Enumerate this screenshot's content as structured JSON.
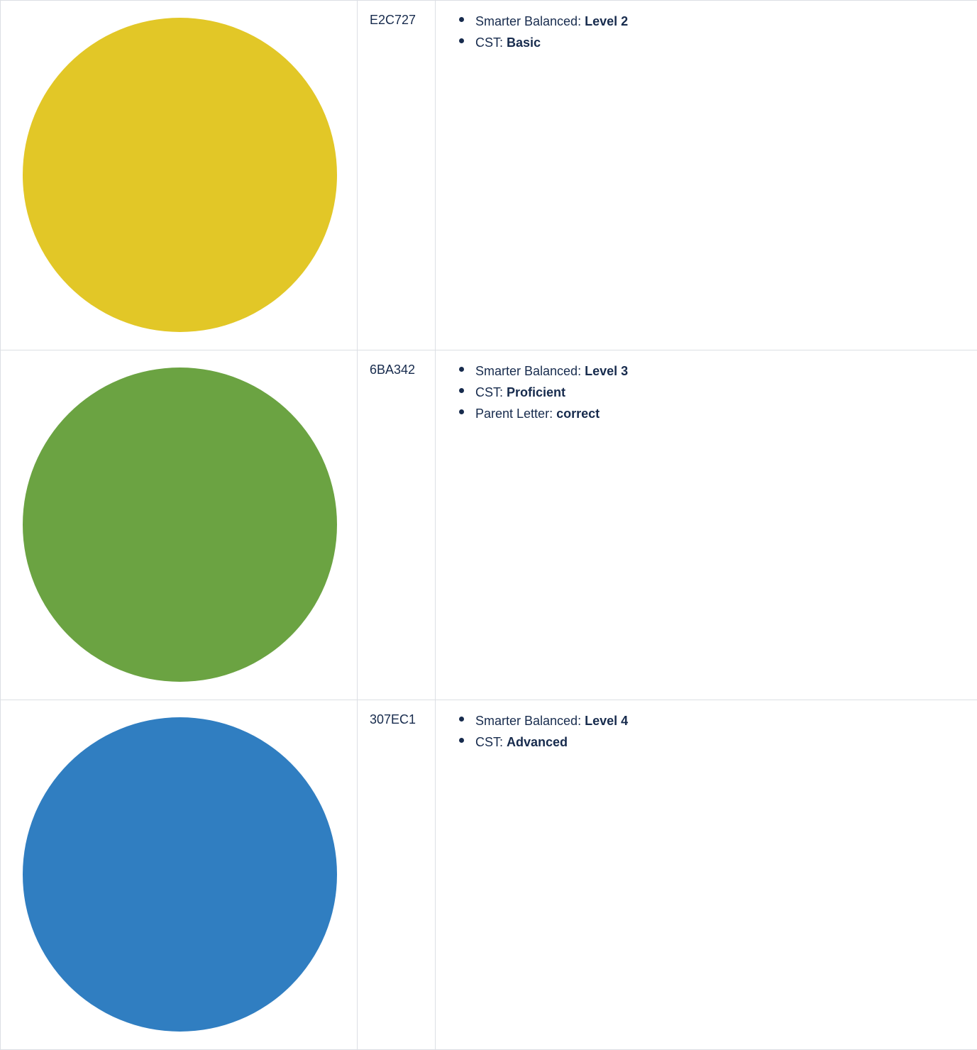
{
  "rows": [
    {
      "color": "#E2C727",
      "hex": "E2C727",
      "items": [
        {
          "label": "Smarter Balanced: ",
          "value": "Level 2"
        },
        {
          "label": "CST: ",
          "value": "Basic"
        }
      ]
    },
    {
      "color": "#6BA342",
      "hex": "6BA342",
      "items": [
        {
          "label": "Smarter Balanced: ",
          "value": "Level 3"
        },
        {
          "label": "CST: ",
          "value": "Proficient"
        },
        {
          "label": "Parent Letter: ",
          "value": "correct"
        }
      ]
    },
    {
      "color": "#307EC1",
      "hex": "307EC1",
      "items": [
        {
          "label": "Smarter Balanced: ",
          "value": "Level 4"
        },
        {
          "label": "CST: ",
          "value": "Advanced"
        }
      ]
    }
  ]
}
